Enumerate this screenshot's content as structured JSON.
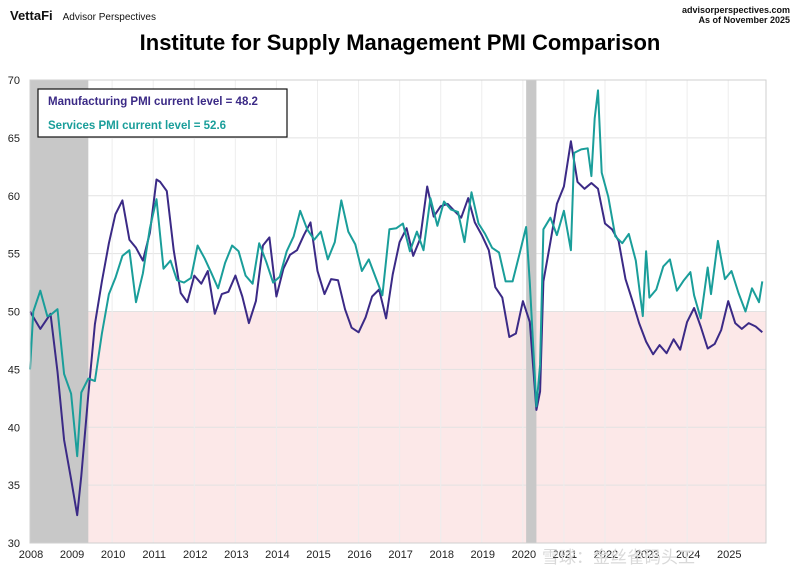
{
  "header": {
    "brand": "VettaFi",
    "brand_sub": "Advisor Perspectives",
    "site": "advisorperspectives.com",
    "as_of": "As of November 2025"
  },
  "watermark": "雪球：金丝雀码头工",
  "chart_data": {
    "type": "line",
    "title": "Institute for Supply Management PMI Comparison",
    "xlabel": "",
    "ylabel": "",
    "xlim": [
      2008,
      2025.92
    ],
    "ylim": [
      30,
      70
    ],
    "x_ticks": [
      "2008",
      "2009",
      "2010",
      "2011",
      "2012",
      "2013",
      "2014",
      "2015",
      "2016",
      "2017",
      "2018",
      "2019",
      "2020",
      "2021",
      "2022",
      "2023",
      "2024",
      "2025"
    ],
    "y_ticks": [
      30,
      35,
      40,
      45,
      50,
      55,
      60,
      65,
      70
    ],
    "grid": true,
    "contraction_zone": [
      30,
      50
    ],
    "recessions": [
      [
        2008.0,
        2009.42
      ],
      [
        2020.08,
        2020.33
      ]
    ],
    "legend": {
      "placement": "top-left",
      "items": [
        "Manufacturing PMI current level = 48.2",
        "Services PMI current level = 52.6"
      ]
    },
    "colors": {
      "manufacturing": "#3b2a86",
      "services": "#1a9e9a",
      "recession": "#c8c8c8",
      "contraction": "#fce8e8"
    },
    "series": [
      {
        "name": "Manufacturing PMI",
        "x": [
          2008.0,
          2008.25,
          2008.5,
          2008.67,
          2008.83,
          2009.0,
          2009.15,
          2009.25,
          2009.42,
          2009.58,
          2009.75,
          2009.92,
          2010.08,
          2010.25,
          2010.42,
          2010.58,
          2010.75,
          2010.92,
          2011.08,
          2011.17,
          2011.33,
          2011.5,
          2011.67,
          2011.83,
          2012.0,
          2012.17,
          2012.33,
          2012.5,
          2012.67,
          2012.83,
          2013.0,
          2013.17,
          2013.33,
          2013.5,
          2013.67,
          2013.83,
          2014.0,
          2014.17,
          2014.33,
          2014.5,
          2014.67,
          2014.83,
          2015.0,
          2015.17,
          2015.33,
          2015.5,
          2015.67,
          2015.83,
          2016.0,
          2016.17,
          2016.33,
          2016.5,
          2016.67,
          2016.83,
          2017.0,
          2017.17,
          2017.33,
          2017.5,
          2017.67,
          2017.83,
          2018.0,
          2018.17,
          2018.33,
          2018.5,
          2018.67,
          2018.83,
          2019.0,
          2019.17,
          2019.33,
          2019.5,
          2019.67,
          2019.83,
          2020.0,
          2020.17,
          2020.33,
          2020.42,
          2020.5,
          2020.67,
          2020.83,
          2021.0,
          2021.17,
          2021.33,
          2021.5,
          2021.67,
          2021.83,
          2022.0,
          2022.17,
          2022.33,
          2022.5,
          2022.67,
          2022.83,
          2023.0,
          2023.17,
          2023.33,
          2023.5,
          2023.67,
          2023.83,
          2024.0,
          2024.17,
          2024.33,
          2024.5,
          2024.67,
          2024.83,
          2025.0,
          2025.17,
          2025.33,
          2025.5,
          2025.67,
          2025.83
        ],
        "values": [
          50.0,
          48.5,
          49.8,
          44.8,
          38.9,
          35.5,
          32.4,
          35.8,
          42.8,
          48.9,
          52.6,
          55.9,
          58.4,
          59.6,
          56.2,
          55.5,
          54.4,
          56.8,
          61.4,
          61.2,
          60.4,
          55.3,
          51.6,
          50.8,
          53.1,
          52.4,
          53.5,
          49.8,
          51.5,
          51.7,
          53.1,
          51.3,
          49.0,
          50.9,
          55.7,
          56.4,
          51.3,
          53.7,
          54.9,
          55.3,
          56.6,
          57.7,
          53.5,
          51.5,
          52.8,
          52.7,
          50.2,
          48.6,
          48.2,
          49.5,
          51.3,
          51.9,
          49.4,
          53.2,
          56.0,
          57.2,
          54.8,
          56.3,
          60.8,
          58.2,
          59.1,
          59.3,
          58.7,
          58.1,
          59.8,
          57.7,
          56.6,
          55.3,
          52.1,
          51.2,
          47.8,
          48.1,
          50.9,
          49.1,
          41.5,
          43.1,
          52.6,
          56.0,
          59.3,
          60.8,
          64.7,
          61.2,
          60.6,
          61.1,
          60.6,
          57.6,
          57.1,
          56.1,
          52.8,
          50.9,
          49.0,
          47.4,
          46.3,
          47.1,
          46.4,
          47.6,
          46.7,
          49.1,
          50.3,
          48.7,
          46.8,
          47.2,
          48.4,
          50.9,
          49.0,
          48.5,
          49.0,
          48.7,
          48.2
        ],
        "current": 48.2
      },
      {
        "name": "Services PMI",
        "x": [
          2008.0,
          2008.08,
          2008.25,
          2008.42,
          2008.5,
          2008.67,
          2008.83,
          2009.0,
          2009.15,
          2009.25,
          2009.42,
          2009.58,
          2009.75,
          2009.92,
          2010.08,
          2010.25,
          2010.42,
          2010.58,
          2010.75,
          2010.92,
          2011.08,
          2011.25,
          2011.42,
          2011.58,
          2011.75,
          2011.92,
          2012.08,
          2012.25,
          2012.42,
          2012.58,
          2012.75,
          2012.92,
          2013.08,
          2013.25,
          2013.42,
          2013.58,
          2013.75,
          2013.92,
          2014.08,
          2014.25,
          2014.42,
          2014.58,
          2014.75,
          2014.92,
          2015.08,
          2015.25,
          2015.42,
          2015.58,
          2015.75,
          2015.92,
          2016.08,
          2016.25,
          2016.42,
          2016.58,
          2016.75,
          2016.92,
          2017.08,
          2017.25,
          2017.42,
          2017.58,
          2017.75,
          2017.92,
          2018.08,
          2018.25,
          2018.42,
          2018.58,
          2018.75,
          2018.92,
          2019.08,
          2019.25,
          2019.42,
          2019.58,
          2019.75,
          2019.92,
          2020.08,
          2020.17,
          2020.33,
          2020.42,
          2020.5,
          2020.67,
          2020.83,
          2021.0,
          2021.17,
          2021.25,
          2021.42,
          2021.58,
          2021.67,
          2021.75,
          2021.83,
          2021.92,
          2022.08,
          2022.25,
          2022.42,
          2022.58,
          2022.75,
          2022.92,
          2023.0,
          2023.08,
          2023.25,
          2023.42,
          2023.58,
          2023.75,
          2023.92,
          2024.08,
          2024.17,
          2024.33,
          2024.5,
          2024.58,
          2024.75,
          2024.92,
          2025.08,
          2025.25,
          2025.42,
          2025.58,
          2025.75,
          2025.83
        ],
        "values": [
          45.0,
          50.0,
          51.8,
          49.6,
          49.7,
          50.2,
          44.6,
          42.9,
          37.5,
          43.0,
          44.2,
          44.0,
          48.1,
          51.5,
          52.9,
          54.8,
          55.3,
          50.8,
          53.3,
          57.2,
          59.7,
          53.7,
          54.4,
          52.7,
          52.5,
          52.9,
          55.7,
          54.6,
          53.3,
          52.0,
          54.2,
          55.7,
          55.2,
          53.1,
          52.4,
          55.9,
          54.3,
          52.5,
          53.0,
          55.2,
          56.5,
          58.7,
          57.1,
          56.2,
          56.9,
          54.5,
          56.0,
          59.6,
          56.9,
          55.8,
          53.5,
          54.5,
          52.9,
          51.4,
          57.1,
          57.2,
          57.6,
          55.2,
          56.9,
          55.3,
          59.8,
          57.4,
          59.5,
          58.8,
          58.6,
          56.0,
          60.3,
          57.6,
          56.7,
          55.5,
          55.1,
          52.6,
          52.6,
          55.0,
          57.3,
          52.5,
          41.8,
          45.4,
          57.1,
          58.1,
          56.6,
          58.7,
          55.3,
          63.7,
          64.0,
          64.1,
          61.7,
          66.7,
          69.1,
          62.0,
          59.9,
          56.5,
          55.9,
          56.7,
          54.4,
          49.6,
          55.2,
          51.2,
          51.9,
          53.9,
          54.5,
          51.8,
          52.7,
          53.4,
          51.4,
          49.4,
          53.8,
          51.5,
          56.1,
          52.8,
          53.5,
          51.6,
          50.0,
          52.0,
          50.8,
          52.6
        ],
        "current": 52.6
      }
    ]
  }
}
